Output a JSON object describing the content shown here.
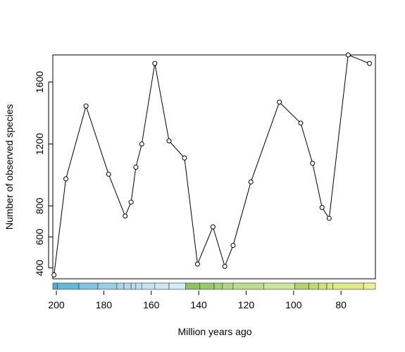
{
  "chart_data": {
    "type": "line",
    "title": "",
    "xlabel": "Million years ago",
    "ylabel": "Number of observed species",
    "xlim": [
      201.5,
      65.5
    ],
    "ylim": [
      330,
      1775
    ],
    "x_reversed": true,
    "xticks": [
      200,
      180,
      160,
      140,
      120,
      100,
      80
    ],
    "yticks": [
      400,
      600,
      800,
      1200,
      1600
    ],
    "grid": false,
    "legend": "none",
    "line_color": "#000000",
    "marker": "open-circle",
    "series": [
      {
        "x": [
          201,
          196,
          187.5,
          178,
          171,
          168.5,
          166.5,
          164,
          158.5,
          152.5,
          146,
          140.5,
          134,
          129,
          125.5,
          118,
          106,
          97,
          92,
          88,
          85,
          77,
          68
        ],
        "y": [
          355,
          975,
          1445,
          1005,
          735,
          825,
          1050,
          1200,
          1720,
          1220,
          1110,
          425,
          665,
          410,
          545,
          955,
          1470,
          1335,
          1075,
          790,
          720,
          1775,
          1720
        ]
      }
    ],
    "timescale_bar": {
      "segments": [
        {
          "from": 201.5,
          "to": 199.5,
          "color": "#4fb0d2"
        },
        {
          "from": 199.5,
          "to": 190.5,
          "color": "#63b8d8"
        },
        {
          "from": 190.5,
          "to": 182.5,
          "color": "#80c5e0"
        },
        {
          "from": 182.5,
          "to": 174.5,
          "color": "#99cfe5"
        },
        {
          "from": 174.5,
          "to": 171.5,
          "color": "#a8d6e9"
        },
        {
          "from": 171.5,
          "to": 168.5,
          "color": "#b0d9ea"
        },
        {
          "from": 168.5,
          "to": 166.5,
          "color": "#b8ddec"
        },
        {
          "from": 166.5,
          "to": 164,
          "color": "#bfe1ee"
        },
        {
          "from": 164,
          "to": 158.5,
          "color": "#c6e4f0"
        },
        {
          "from": 158.5,
          "to": 152.5,
          "color": "#cce7f1"
        },
        {
          "from": 152.5,
          "to": 145.5,
          "color": "#d6ecf4"
        },
        {
          "from": 145.5,
          "to": 139.5,
          "color": "#8cc461"
        },
        {
          "from": 139.5,
          "to": 133.5,
          "color": "#98ca6b"
        },
        {
          "from": 133.5,
          "to": 130,
          "color": "#a4d077"
        },
        {
          "from": 130,
          "to": 125.5,
          "color": "#b0d684"
        },
        {
          "from": 125.5,
          "to": 112.5,
          "color": "#bcdc8f"
        },
        {
          "from": 112.5,
          "to": 99.5,
          "color": "#cce59c"
        },
        {
          "from": 99.5,
          "to": 93.5,
          "color": "#b3d46c"
        },
        {
          "from": 93.5,
          "to": 89.5,
          "color": "#c0da72"
        },
        {
          "from": 89.5,
          "to": 86,
          "color": "#cce27a"
        },
        {
          "from": 86,
          "to": 83.5,
          "color": "#d6e681"
        },
        {
          "from": 83.5,
          "to": 70.5,
          "color": "#e0eb88"
        },
        {
          "from": 70.5,
          "to": 65.5,
          "color": "#ecf090"
        }
      ]
    }
  }
}
